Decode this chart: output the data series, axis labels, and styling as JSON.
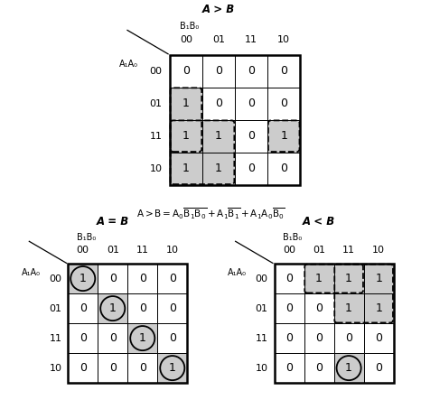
{
  "title_agb": "A > B",
  "title_aeb": "A = B",
  "title_alb": "A < B",
  "col_labels": [
    "00",
    "01",
    "11",
    "10"
  ],
  "row_labels": [
    "00",
    "01",
    "11",
    "10"
  ],
  "col_header": "B₁B₀",
  "row_header": "A₁A₀",
  "agb_values": [
    [
      0,
      0,
      0,
      0
    ],
    [
      1,
      0,
      0,
      0
    ],
    [
      1,
      1,
      0,
      1
    ],
    [
      1,
      1,
      0,
      0
    ]
  ],
  "aeb_values": [
    [
      1,
      0,
      0,
      0
    ],
    [
      0,
      1,
      0,
      0
    ],
    [
      0,
      0,
      1,
      0
    ],
    [
      0,
      0,
      0,
      1
    ]
  ],
  "alb_values": [
    [
      0,
      1,
      1,
      1
    ],
    [
      0,
      0,
      1,
      1
    ],
    [
      0,
      0,
      0,
      0
    ],
    [
      0,
      0,
      1,
      0
    ]
  ],
  "bg_gray": "#cccccc",
  "bg_white": "#ffffff"
}
